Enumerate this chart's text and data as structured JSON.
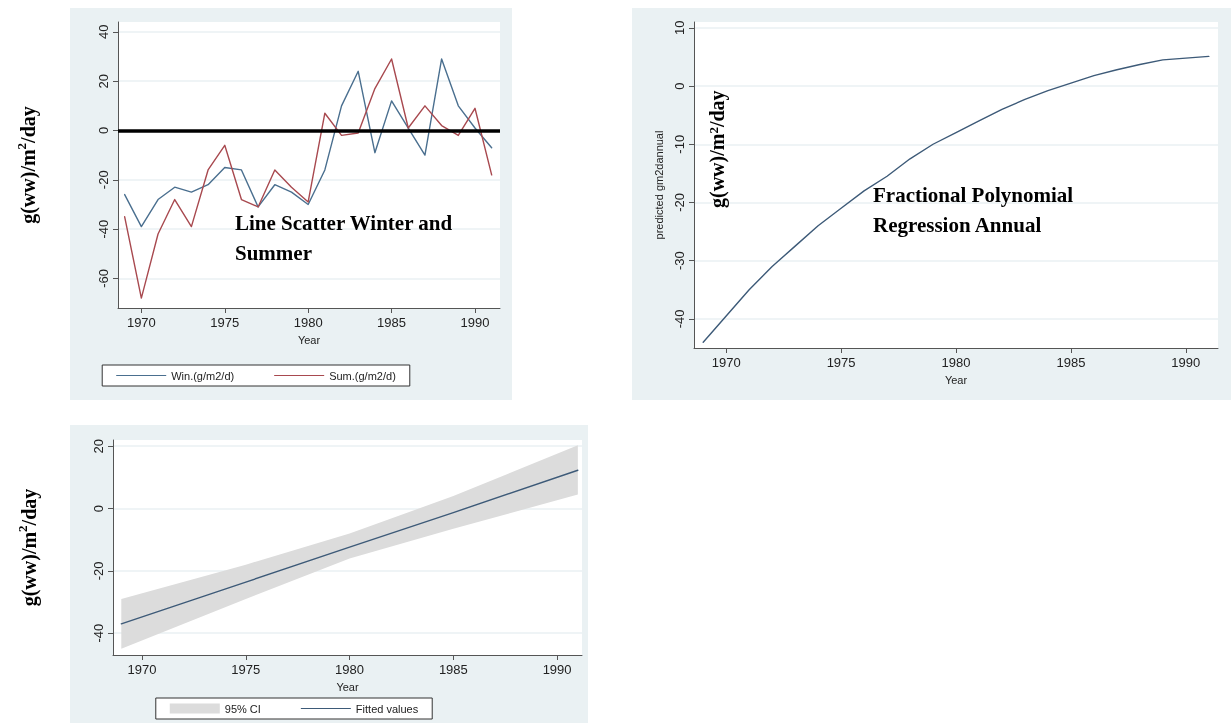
{
  "chart_data": [
    {
      "type": "line",
      "xlabel": "Year",
      "ylabel": "g(ww)/m$^{2}$/day",
      "annotations": [
        "Line Scatter Winter and Summer"
      ],
      "x": [
        1969,
        1970,
        1971,
        1972,
        1973,
        1974,
        1975,
        1976,
        1977,
        1978,
        1979,
        1980,
        1981,
        1982,
        1983,
        1984,
        1985,
        1986,
        1987,
        1988,
        1989,
        1990,
        1991
      ],
      "series": [
        {
          "name": "Win.(g/m2/d)",
          "color": "#4a6f8f",
          "values": [
            -26,
            -39,
            -28,
            -23,
            -25,
            -22,
            -15,
            -16,
            -31,
            -22,
            -25,
            -30,
            -16,
            10,
            24,
            -9,
            12,
            1,
            -10,
            29,
            10,
            1,
            -7
          ]
        },
        {
          "name": "Sum.(g/m2/d)",
          "color": "#a8494f",
          "values": [
            -35,
            -68,
            -42,
            -28,
            -39,
            -16,
            -6,
            -28,
            -31,
            -16,
            -23,
            -29,
            7,
            -2,
            -1,
            17,
            29,
            1,
            10,
            2,
            -2,
            9,
            -18
          ]
        }
      ],
      "xlim": [
        1968.6,
        1991.5
      ],
      "xticks": [
        1970,
        1975,
        1980,
        1985,
        1990
      ],
      "ylim": [
        -72,
        44
      ],
      "yticks": [
        -60,
        -40,
        -20,
        0,
        20,
        40
      ],
      "ref_lines": [
        {
          "axis": "y",
          "value": 0,
          "color": "#000000"
        }
      ],
      "grid": "y",
      "legend": "bottom",
      "marker": "none",
      "line_style": "solid"
    },
    {
      "type": "line",
      "xlabel": "Year",
      "ylabel": "predicted gm2dannual",
      "annotations": [
        "Fractional Polynomial Regression Annual",
        "g(ww)/m$^{2}$/day"
      ],
      "x": [
        1969,
        1970,
        1971,
        1972,
        1973,
        1974,
        1975,
        1976,
        1977,
        1978,
        1979,
        1980,
        1981,
        1982,
        1983,
        1984,
        1985,
        1986,
        1987,
        1988,
        1989,
        1990,
        1991
      ],
      "series": [
        {
          "color": "#3d5a78",
          "values": [
            -44,
            -39.5,
            -35,
            -31,
            -27.5,
            -24,
            -21,
            -18,
            -15.5,
            -12.5,
            -10,
            -8,
            -6,
            -4,
            -2.3,
            -0.8,
            0.5,
            1.8,
            2.8,
            3.7,
            4.5,
            4.8,
            5.1
          ]
        }
      ],
      "xlim": [
        1968.6,
        1991.4
      ],
      "xticks": [
        1970,
        1975,
        1980,
        1985,
        1990
      ],
      "ylim": [
        -45,
        11
      ],
      "yticks": [
        -40,
        -30,
        -20,
        -10,
        0,
        10
      ],
      "grid": "y",
      "marker": "none",
      "line_style": "solid"
    },
    {
      "type": "line",
      "xlabel": "Year",
      "ylabel": "g(ww)/m$^{2}$/day",
      "annotations": [
        "95% CI"
      ],
      "series": [
        {
          "name": "Fitted values",
          "color": "#3d5a78",
          "x": [
            1969,
            1975,
            1980,
            1985,
            1991
          ],
          "values": [
            -37,
            -23.6,
            -12.4,
            -1.3,
            12.3
          ],
          "lower": [
            -45,
            -29,
            -16,
            -6.5,
            4.5
          ],
          "upper": [
            -29,
            -18,
            -8,
            4,
            20.3
          ]
        }
      ],
      "xlim": [
        1968.6,
        1991.2
      ],
      "xticks": [
        1970,
        1975,
        1980,
        1985,
        1990
      ],
      "ylim": [
        -47,
        22
      ],
      "yticks": [
        -40,
        -20,
        0,
        20
      ],
      "grid": "y",
      "legend": "bottom",
      "marker": "none",
      "line_style": "solid"
    }
  ]
}
